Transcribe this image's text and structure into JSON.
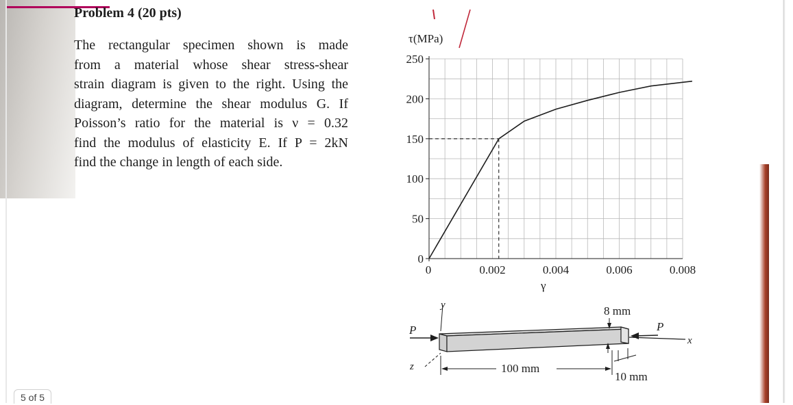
{
  "problem": {
    "heading": "Problem 4 (20 pts)",
    "lines": [
      "The rectangular specimen shown is made",
      "from a material whose shear stress-shear",
      "strain diagram is given to the right. Using the",
      "diagram, determine the shear modulus G. If",
      "Poisson’s ratio for the material is ν = 0.32",
      "find the modulus of elasticity E. If P = 2kN",
      "find the change in length of each side."
    ]
  },
  "chart_data": {
    "type": "line",
    "ylabel": "τ(MPa)",
    "xlabel": "γ",
    "xlim": [
      0,
      0.008
    ],
    "ylim": [
      0,
      250
    ],
    "x_ticks": [
      0,
      0.002,
      0.004,
      0.006,
      0.008
    ],
    "x_tick_labels": [
      "0",
      "0.002",
      "0.004",
      "0.006",
      "0.008"
    ],
    "y_ticks": [
      0,
      50,
      100,
      150,
      200,
      250
    ],
    "y_tick_labels": [
      "0",
      "50",
      "100",
      "150",
      "200",
      "250"
    ],
    "grid": true,
    "series": [
      {
        "x": [
          0,
          0.0022,
          0.003,
          0.004,
          0.005,
          0.006,
          0.007,
          0.0083
        ],
        "y": [
          0,
          150,
          172,
          187,
          198,
          208,
          216,
          222
        ]
      }
    ],
    "annotation_point": {
      "x": 0.0022,
      "y": 150
    }
  },
  "specimen": {
    "load_left": "P",
    "load_right": "P",
    "axis_x": "x",
    "axis_y": "y",
    "axis_z": "z",
    "length_label": "100 mm",
    "height_label": "8 mm",
    "width_label": "10 mm"
  },
  "viewer": {
    "page_indicator": "5 of 5"
  }
}
